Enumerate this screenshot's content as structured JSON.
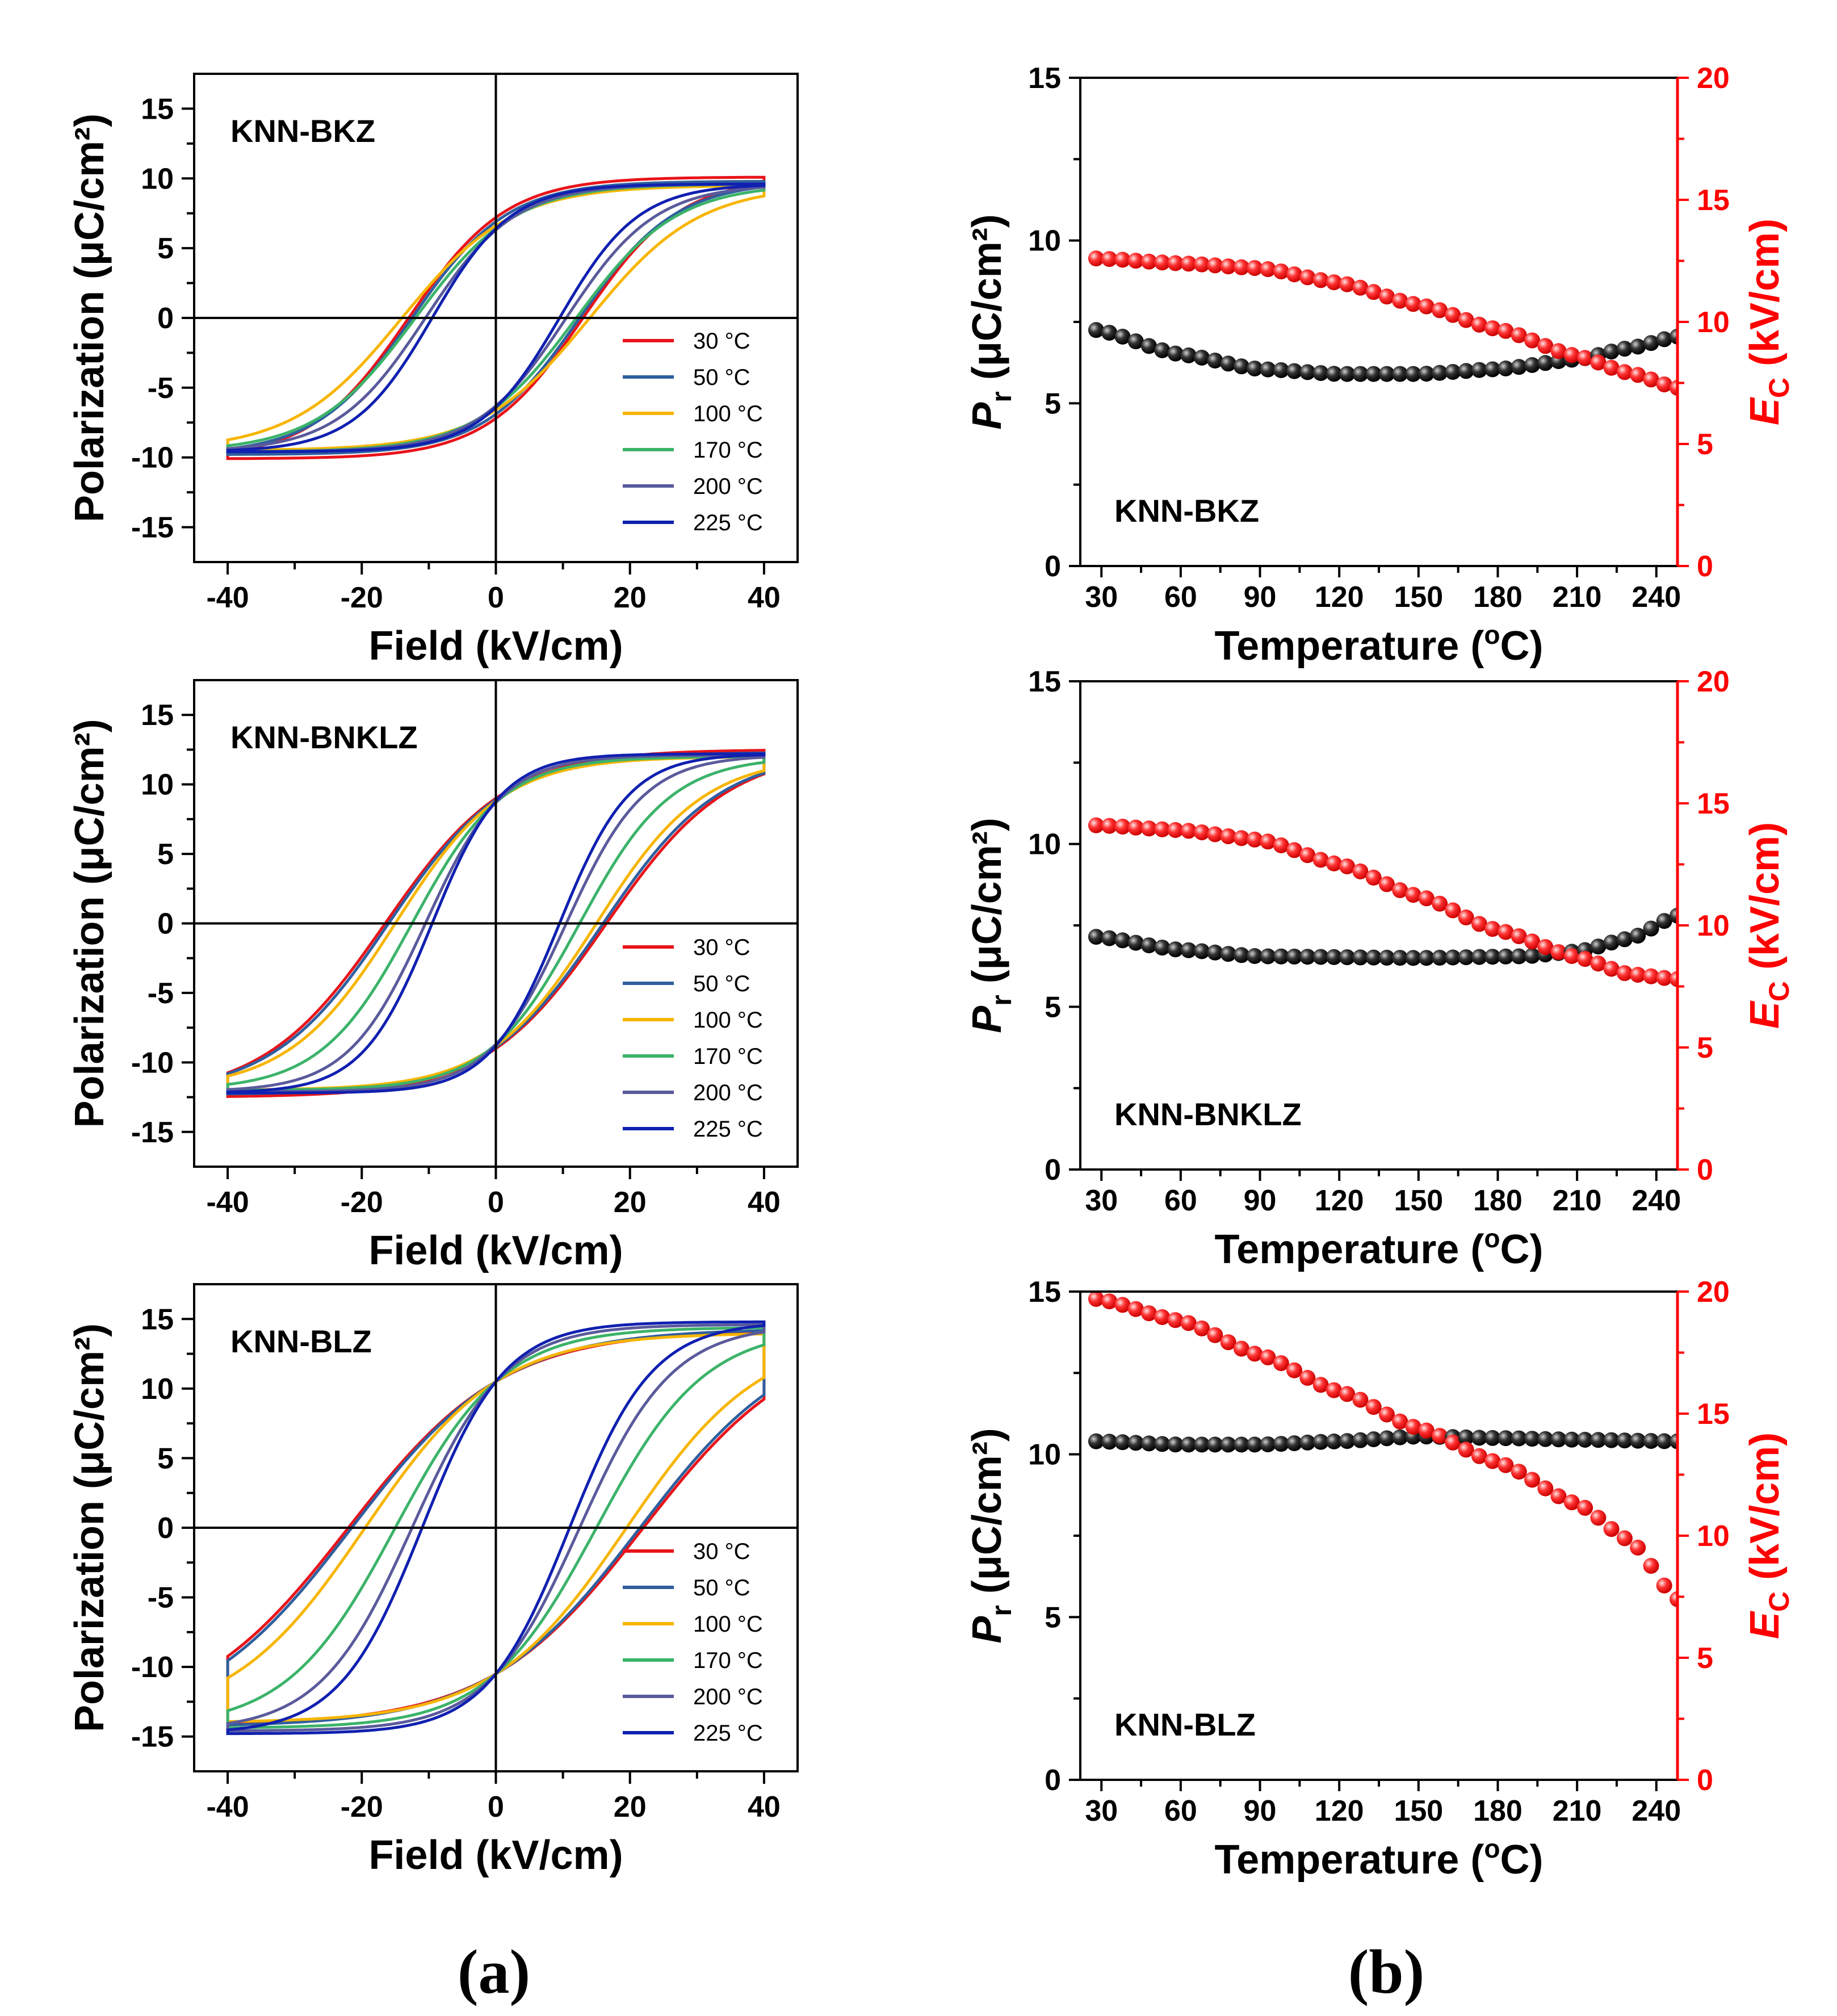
{
  "figure": {
    "panel_a_label": "(a)",
    "panel_b_label": "(b)",
    "colors": {
      "pr": "#000000",
      "ec": "#ff3333",
      "ec_axis": "#ff0000"
    }
  },
  "chart_data": [
    {
      "id": "a1",
      "type": "line",
      "title": "KNN-BKZ",
      "xlabel": "Field (kV/cm)",
      "ylabel": "Polarization (μC/cm²)",
      "xlim": [
        -45,
        45
      ],
      "ylim": [
        -17.5,
        17.5
      ],
      "xticks": [
        "-40",
        "-20",
        "0",
        "20",
        "40"
      ],
      "yticks": [
        "-15",
        "-10",
        "-5",
        "0",
        "5",
        "10",
        "15"
      ],
      "series": [
        {
          "name": "30 °C",
          "color": "#e8141a",
          "ps": 10.1,
          "pr": 7.2,
          "ec": 13.0
        },
        {
          "name": "50 °C",
          "color": "#2f5f9e",
          "ps": 9.8,
          "pr": 6.9,
          "ec": 12.5
        },
        {
          "name": "100 °C",
          "color": "#f7b500",
          "ps": 9.5,
          "pr": 6.6,
          "ec": 14.0
        },
        {
          "name": "170 °C",
          "color": "#3cb36a",
          "ps": 9.6,
          "pr": 6.4,
          "ec": 12.0
        },
        {
          "name": "200 °C",
          "color": "#5a5a9c",
          "ps": 9.6,
          "pr": 6.3,
          "ec": 10.5
        },
        {
          "name": "225 °C",
          "color": "#1020b0",
          "ps": 9.6,
          "pr": 6.4,
          "ec": 9.5
        }
      ]
    },
    {
      "id": "a2",
      "type": "line",
      "title": "KNN-BNKLZ",
      "xlabel": "Field (kV/cm)",
      "ylabel": "Polarization (μC/cm²)",
      "xlim": [
        -45,
        45
      ],
      "ylim": [
        -17.5,
        17.5
      ],
      "xticks": [
        "-40",
        "-20",
        "0",
        "20",
        "40"
      ],
      "yticks": [
        "-15",
        "-10",
        "-5",
        "0",
        "5",
        "10",
        "15"
      ],
      "series": [
        {
          "name": "30 °C",
          "color": "#e8141a",
          "ps": 12.5,
          "pr": 9.0,
          "ec": 16.5
        },
        {
          "name": "50 °C",
          "color": "#2f5f9e",
          "ps": 12.3,
          "pr": 8.9,
          "ec": 16.0
        },
        {
          "name": "100 °C",
          "color": "#f7b500",
          "ps": 12.0,
          "pr": 8.8,
          "ec": 15.0
        },
        {
          "name": "170 °C",
          "color": "#3cb36a",
          "ps": 12.0,
          "pr": 8.7,
          "ec": 12.5
        },
        {
          "name": "200 °C",
          "color": "#5a5a9c",
          "ps": 12.1,
          "pr": 8.7,
          "ec": 10.5
        },
        {
          "name": "225 °C",
          "color": "#1020b0",
          "ps": 12.2,
          "pr": 8.8,
          "ec": 9.5
        }
      ]
    },
    {
      "id": "a3",
      "type": "line",
      "title": "KNN-BLZ",
      "xlabel": "Field (kV/cm)",
      "ylabel": "Polarization (μC/cm²)",
      "xlim": [
        -45,
        45
      ],
      "ylim": [
        -17.5,
        17.5
      ],
      "xticks": [
        "-40",
        "-20",
        "0",
        "20",
        "40"
      ],
      "yticks": [
        "-15",
        "-10",
        "-5",
        "0",
        "5",
        "10",
        "15"
      ],
      "series": [
        {
          "name": "30 °C",
          "color": "#e8141a",
          "ps": 14.2,
          "pr": 10.5,
          "ec": 22.0
        },
        {
          "name": "50 °C",
          "color": "#2f5f9e",
          "ps": 14.3,
          "pr": 10.5,
          "ec": 21.5
        },
        {
          "name": "100 °C",
          "color": "#f7b500",
          "ps": 14.0,
          "pr": 10.5,
          "ec": 19.5
        },
        {
          "name": "170 °C",
          "color": "#3cb36a",
          "ps": 14.4,
          "pr": 10.5,
          "ec": 15.0
        },
        {
          "name": "200 °C",
          "color": "#5a5a9c",
          "ps": 14.6,
          "pr": 10.5,
          "ec": 12.5
        },
        {
          "name": "225 °C",
          "color": "#1020b0",
          "ps": 14.8,
          "pr": 10.5,
          "ec": 11.0
        }
      ]
    },
    {
      "id": "b1",
      "type": "scatter",
      "title": "KNN-BKZ",
      "xlabel_main": "Temperature (",
      "xlabel_sup": "o",
      "xlabel_tail": "C)",
      "ylabel_main": "P",
      "ylabel_sub": "r",
      "ylabel_unit": " (μC/cm²)",
      "y2label_main": "E",
      "y2label_sub": "C",
      "y2label_unit": " (kV/cm)",
      "xlim": [
        22,
        248
      ],
      "ylim": [
        0,
        15
      ],
      "y2lim": [
        0,
        20
      ],
      "xticks": [
        "30",
        "60",
        "90",
        "120",
        "150",
        "180",
        "210",
        "240"
      ],
      "yticks": [
        "0",
        "5",
        "10",
        "15"
      ],
      "y2ticks": [
        "0",
        "5",
        "10",
        "15",
        "20"
      ],
      "x_start": 28,
      "x_step": 5,
      "n_points": 45,
      "pr_knots": [
        [
          28,
          7.25
        ],
        [
          60,
          6.5
        ],
        [
          90,
          6.05
        ],
        [
          120,
          5.9
        ],
        [
          150,
          5.9
        ],
        [
          180,
          6.05
        ],
        [
          210,
          6.35
        ],
        [
          230,
          6.7
        ],
        [
          248,
          7.05
        ]
      ],
      "ec_knots": [
        [
          28,
          12.6
        ],
        [
          60,
          12.4
        ],
        [
          90,
          12.2
        ],
        [
          120,
          11.6
        ],
        [
          150,
          10.7
        ],
        [
          180,
          9.7
        ],
        [
          210,
          8.6
        ],
        [
          230,
          7.9
        ],
        [
          248,
          7.3
        ]
      ]
    },
    {
      "id": "b2",
      "type": "scatter",
      "title": "KNN-BNKLZ",
      "xlabel_main": "Temperature (",
      "xlabel_sup": "o",
      "xlabel_tail": "C)",
      "ylabel_main": "P",
      "ylabel_sub": "r",
      "ylabel_unit": " (μC/cm²)",
      "y2label_main": "E",
      "y2label_sub": "C",
      "y2label_unit": " (kV/cm)",
      "xlim": [
        22,
        248
      ],
      "ylim": [
        0,
        15
      ],
      "y2lim": [
        0,
        20
      ],
      "xticks": [
        "30",
        "60",
        "90",
        "120",
        "150",
        "180",
        "210",
        "240"
      ],
      "yticks": [
        "0",
        "5",
        "10",
        "15"
      ],
      "y2ticks": [
        "0",
        "5",
        "10",
        "15",
        "20"
      ],
      "x_start": 28,
      "x_step": 5,
      "n_points": 45,
      "pr_knots": [
        [
          28,
          7.15
        ],
        [
          60,
          6.75
        ],
        [
          90,
          6.55
        ],
        [
          150,
          6.5
        ],
        [
          190,
          6.55
        ],
        [
          210,
          6.7
        ],
        [
          230,
          7.1
        ],
        [
          248,
          7.8
        ]
      ],
      "ec_knots": [
        [
          28,
          14.1
        ],
        [
          60,
          13.9
        ],
        [
          90,
          13.5
        ],
        [
          120,
          12.5
        ],
        [
          150,
          11.2
        ],
        [
          180,
          9.8
        ],
        [
          210,
          8.7
        ],
        [
          230,
          8.0
        ],
        [
          248,
          7.8
        ]
      ]
    },
    {
      "id": "b3",
      "type": "scatter",
      "title": "KNN-BLZ",
      "xlabel_main": "Temperature (",
      "xlabel_sup": "o",
      "xlabel_tail": "C)",
      "ylabel_main": "P",
      "ylabel_sub": "r",
      "ylabel_unit": " (μC/cm²)",
      "y2label_main": "E",
      "y2label_sub": "C",
      "y2label_unit": " (kV/cm)",
      "xlim": [
        22,
        248
      ],
      "ylim": [
        0,
        15
      ],
      "y2lim": [
        0,
        20
      ],
      "xticks": [
        "30",
        "60",
        "90",
        "120",
        "150",
        "180",
        "210",
        "240"
      ],
      "yticks": [
        "0",
        "5",
        "10",
        "15"
      ],
      "y2ticks": [
        "0",
        "5",
        "10",
        "15",
        "20"
      ],
      "x_start": 28,
      "x_step": 5,
      "n_points": 45,
      "pr_knots": [
        [
          28,
          10.4
        ],
        [
          60,
          10.3
        ],
        [
          90,
          10.3
        ],
        [
          120,
          10.4
        ],
        [
          150,
          10.55
        ],
        [
          180,
          10.5
        ],
        [
          210,
          10.45
        ],
        [
          248,
          10.4
        ]
      ],
      "ec_knots": [
        [
          28,
          19.7
        ],
        [
          60,
          18.8
        ],
        [
          90,
          17.4
        ],
        [
          120,
          15.9
        ],
        [
          150,
          14.4
        ],
        [
          180,
          13.0
        ],
        [
          210,
          11.3
        ],
        [
          230,
          9.8
        ],
        [
          248,
          7.4
        ]
      ]
    }
  ]
}
